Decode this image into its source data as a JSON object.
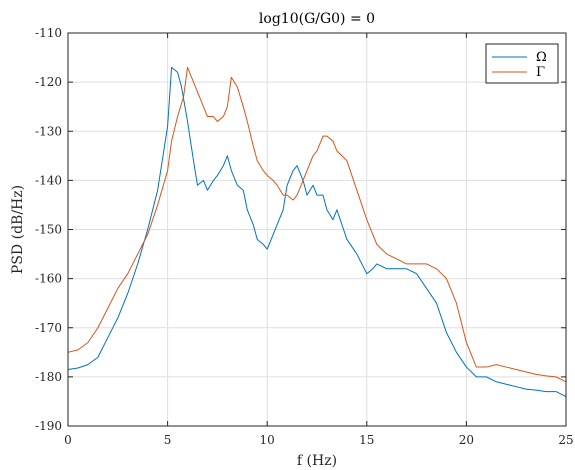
{
  "chart_data": {
    "type": "line",
    "title": "log10(G/G0) = 0",
    "xlabel": "f (Hz)",
    "ylabel": "PSD (dB/Hz)",
    "xlim": [
      0,
      25
    ],
    "ylim": [
      -190,
      -110
    ],
    "xticks": [
      0,
      5,
      10,
      15,
      20,
      25
    ],
    "yticks": [
      -110,
      -120,
      -130,
      -140,
      -150,
      -160,
      -170,
      -180,
      -190
    ],
    "grid": true,
    "legend_position": "top-right",
    "series": [
      {
        "name": "Ω",
        "color": "#0072BD",
        "x": [
          0,
          0.5,
          1,
          1.5,
          2,
          2.5,
          3,
          3.5,
          4,
          4.5,
          5,
          5.2,
          5.5,
          5.7,
          6,
          6.3,
          6.5,
          6.8,
          7,
          7.3,
          7.5,
          7.8,
          8,
          8.2,
          8.5,
          8.8,
          9,
          9.3,
          9.5,
          9.8,
          10,
          10.3,
          10.5,
          10.8,
          11,
          11.3,
          11.5,
          11.8,
          12,
          12.3,
          12.5,
          12.8,
          13,
          13.3,
          13.5,
          14,
          14.5,
          15,
          15.3,
          15.5,
          16,
          16.5,
          17,
          17.5,
          18,
          18.5,
          19,
          19.5,
          20,
          20.5,
          21,
          21.5,
          22,
          22.5,
          23,
          23.5,
          24,
          24.5,
          25
        ],
        "values": [
          -178.5,
          -178.2,
          -177.5,
          -176,
          -172,
          -168,
          -163,
          -157,
          -150,
          -142,
          -129,
          -117,
          -118,
          -121,
          -128,
          -136,
          -141,
          -140,
          -142,
          -140,
          -139,
          -137,
          -135,
          -138,
          -141,
          -142,
          -146,
          -149,
          -152,
          -153,
          -154,
          -151,
          -149,
          -146,
          -141,
          -138,
          -137,
          -140,
          -143,
          -141,
          -143,
          -143,
          -146,
          -148,
          -146,
          -152,
          -155,
          -159,
          -158,
          -157,
          -158,
          -158,
          -158,
          -159,
          -162,
          -165,
          -171,
          -175,
          -178,
          -180,
          -180,
          -181,
          -181.5,
          -182,
          -182.5,
          -182.7,
          -183,
          -183,
          -184
        ]
      },
      {
        "name": "Γ",
        "color": "#D95319",
        "x": [
          0,
          0.5,
          1,
          1.5,
          2,
          2.5,
          3,
          3.5,
          4,
          4.5,
          5,
          5.2,
          5.5,
          5.8,
          6,
          6.2,
          6.5,
          6.8,
          7,
          7.3,
          7.5,
          7.8,
          8,
          8.2,
          8.5,
          8.8,
          9,
          9.3,
          9.5,
          9.8,
          10,
          10.3,
          10.5,
          10.8,
          11,
          11.3,
          11.5,
          11.8,
          12,
          12.3,
          12.5,
          12.8,
          13,
          13.3,
          13.5,
          14,
          14.5,
          15,
          15.3,
          15.5,
          16,
          16.5,
          17,
          17.5,
          18,
          18.5,
          19,
          19.5,
          20,
          20.5,
          21,
          21.5,
          22,
          22.5,
          23,
          23.5,
          24,
          24.5,
          25
        ],
        "values": [
          -175,
          -174.5,
          -173,
          -170,
          -166,
          -162,
          -159,
          -155,
          -151,
          -145,
          -138,
          -132,
          -127,
          -123,
          -117,
          -119,
          -122,
          -125,
          -127,
          -127,
          -128,
          -127,
          -125,
          -119,
          -121,
          -125,
          -128,
          -133,
          -136,
          -138,
          -139,
          -140,
          -141,
          -143,
          -143,
          -144,
          -143,
          -140,
          -138,
          -135,
          -134,
          -131,
          -131,
          -132,
          -134,
          -136,
          -142,
          -148,
          -151,
          -153,
          -155,
          -156,
          -157,
          -157,
          -157,
          -158,
          -160,
          -165,
          -173,
          -178,
          -178,
          -177.5,
          -178,
          -178.5,
          -179,
          -179.5,
          -179.8,
          -180,
          -181
        ]
      }
    ]
  }
}
